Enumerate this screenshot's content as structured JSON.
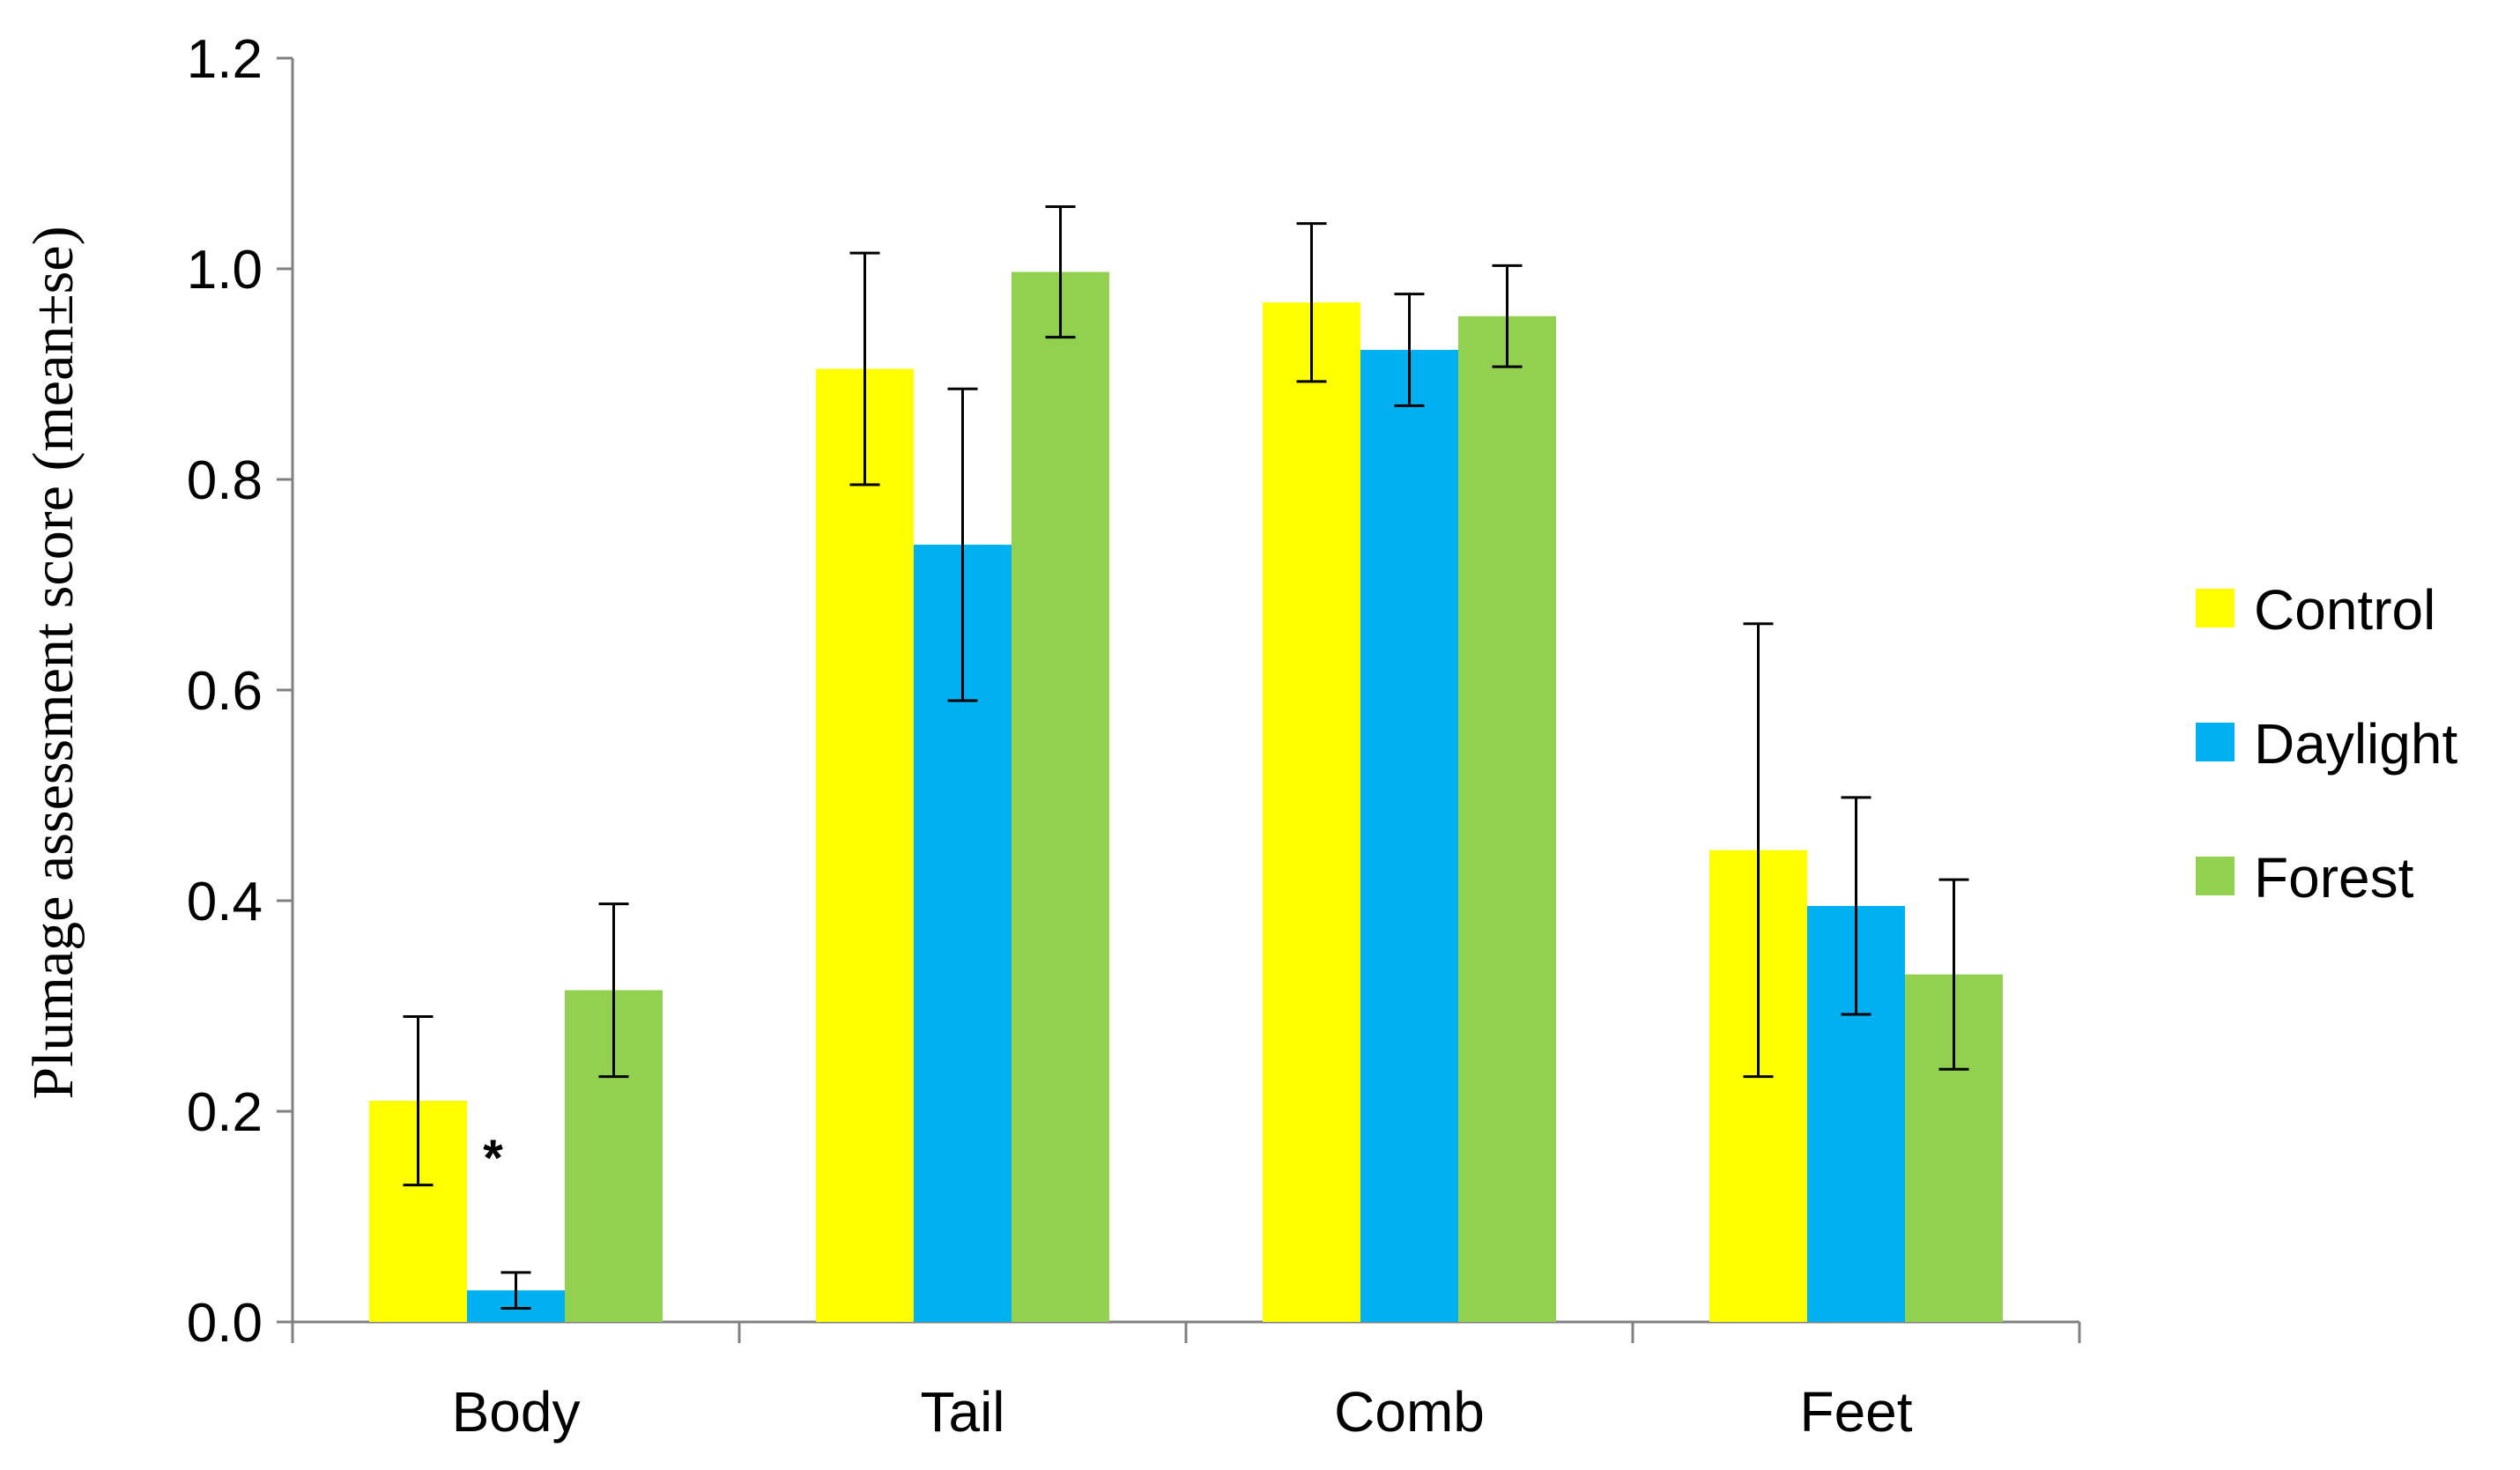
{
  "chart_data": {
    "type": "bar",
    "title": "",
    "xlabel": "",
    "ylabel": "Plumage assessment score (mean±se)",
    "ylim": [
      0,
      1.2
    ],
    "yticks": [
      0.0,
      0.2,
      0.4,
      0.6,
      0.8,
      1.0,
      1.2
    ],
    "ytick_labels": [
      "0.0",
      "0.2",
      "0.4",
      "0.6",
      "0.8",
      "1.0",
      "1.2"
    ],
    "categories": [
      "Body",
      "Tail",
      "Comb",
      "Feet"
    ],
    "legend_position": "right",
    "series": [
      {
        "name": "Control",
        "color": "#FFFF00",
        "values": [
          0.21,
          0.905,
          0.968,
          0.448
        ],
        "errors": [
          0.08,
          0.11,
          0.075,
          0.215
        ]
      },
      {
        "name": "Daylight",
        "color": "#00B0F0",
        "values": [
          0.03,
          0.738,
          0.923,
          0.395
        ],
        "errors": [
          0.017,
          0.148,
          0.053,
          0.103
        ]
      },
      {
        "name": "Forest",
        "color": "#92D050",
        "values": [
          0.315,
          0.997,
          0.955,
          0.33
        ],
        "errors": [
          0.082,
          0.062,
          0.048,
          0.09
        ]
      }
    ],
    "annotations": [
      {
        "text": "*",
        "category": "Body",
        "series": "Daylight"
      }
    ]
  }
}
